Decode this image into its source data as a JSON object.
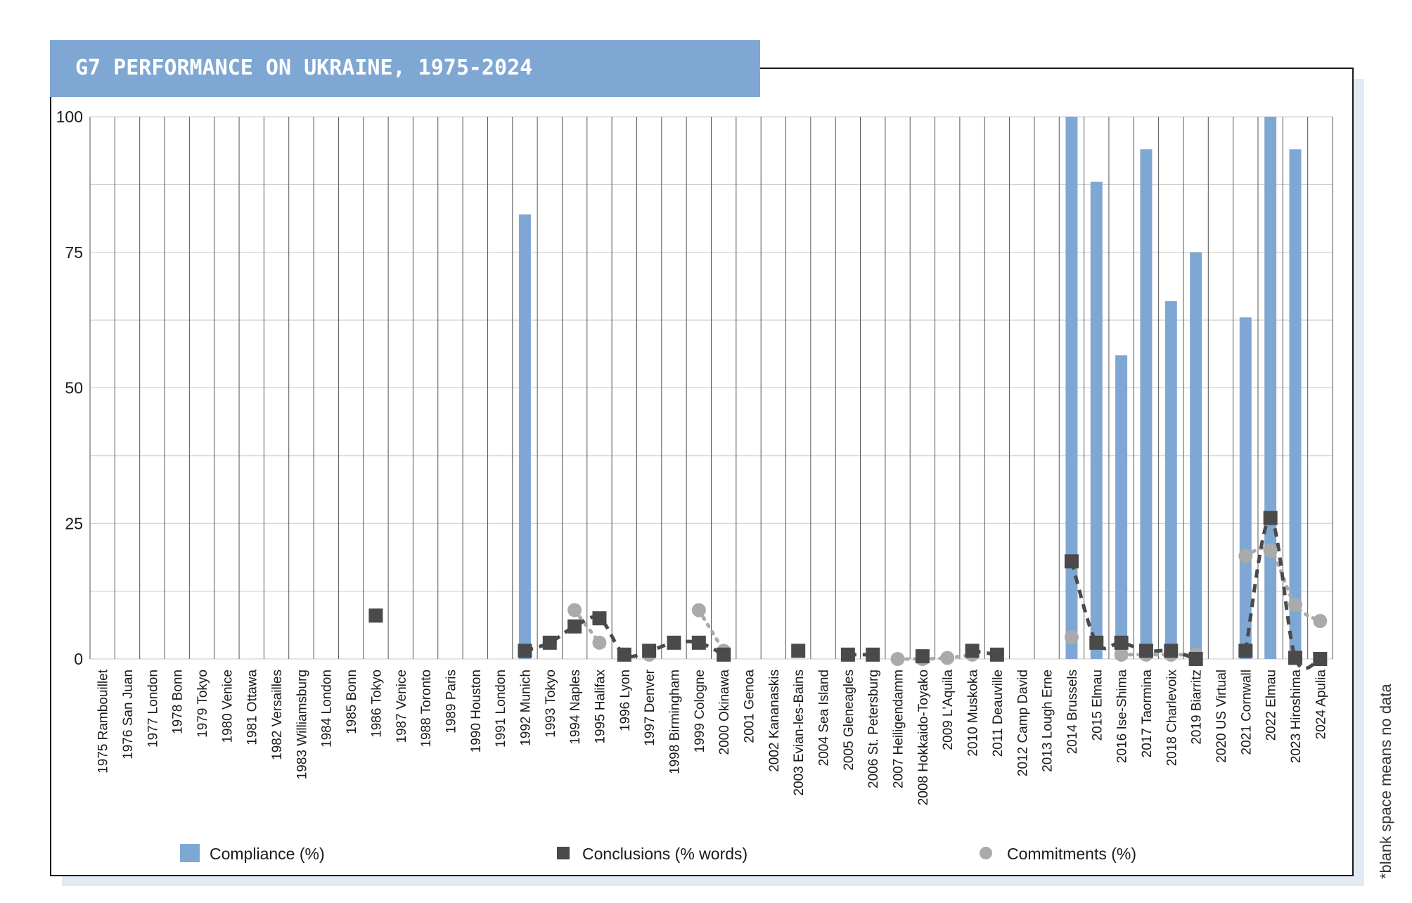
{
  "title": "G7 PERFORMANCE ON UKRAINE, 1975-2024",
  "side_note": "*blank space means no data",
  "colors": {
    "compliance": "#7fa7d3",
    "conclusions": "#4a4a4a",
    "commitments": "#aaaaaa",
    "header_bg": "#7fa7d3",
    "shadow": "#e1eaf3"
  },
  "legend": [
    {
      "key": "compliance",
      "label": "Compliance (%)",
      "marker": "square-blue"
    },
    {
      "key": "conclusions",
      "label": "Conclusions (% words)",
      "marker": "square-dark"
    },
    {
      "key": "commitments",
      "label": "Commitments (%)",
      "marker": "circle-grey"
    }
  ],
  "chart_data": {
    "type": "bar",
    "title": "G7 PERFORMANCE ON UKRAINE, 1975-2024",
    "ylim": [
      0,
      100
    ],
    "yticks": [
      0,
      25,
      50,
      75,
      100
    ],
    "grid": true,
    "legend_position": "bottom",
    "categories": [
      "1975 Rambouillet",
      "1976 San Juan",
      "1977 London",
      "1978 Bonn",
      "1979 Tokyo",
      "1980 Venice",
      "1981 Ottawa",
      "1982 Versailles",
      "1983 Williamsburg",
      "1984 London",
      "1985 Bonn",
      "1986 Tokyo",
      "1987 Venice",
      "1988 Toronto",
      "1989 Paris",
      "1990 Houston",
      "1991 London",
      "1992 Munich",
      "1993 Tokyo",
      "1994 Naples",
      "1995 Halifax",
      "1996 Lyon",
      "1997 Denver",
      "1998 Birmingham",
      "1999 Cologne",
      "2000 Okinawa",
      "2001 Genoa",
      "2002 Kananaskis",
      "2003 Evian-les-Bains",
      "2004 Sea Island",
      "2005 Gleneagles",
      "2006 St. Petersburg",
      "2007 Heiligendamm",
      "2008 Hokkaido-Toyako",
      "2009 L'Aquila",
      "2010 Muskoka",
      "2011 Deauville",
      "2012 Camp David",
      "2013 Lough Erne",
      "2014 Brussels",
      "2015 Elmau",
      "2016 Ise-Shima",
      "2017 Taormina",
      "2018 Charlevoix",
      "2019 Biarritz",
      "2020 US Virtual",
      "2021 Cornwall",
      "2022 Elmau",
      "2023 Hiroshima",
      "2024 Apulia"
    ],
    "series": [
      {
        "name": "Compliance (%)",
        "kind": "bar",
        "values": [
          null,
          null,
          null,
          null,
          null,
          null,
          null,
          null,
          null,
          null,
          null,
          null,
          null,
          null,
          null,
          null,
          null,
          82,
          null,
          null,
          null,
          null,
          null,
          null,
          null,
          null,
          null,
          null,
          null,
          null,
          null,
          null,
          null,
          null,
          null,
          null,
          null,
          null,
          null,
          100,
          88,
          56,
          94,
          66,
          75,
          null,
          63,
          100,
          94,
          null
        ]
      },
      {
        "name": "Conclusions (% words)",
        "kind": "square",
        "values": [
          null,
          null,
          null,
          null,
          null,
          null,
          null,
          null,
          null,
          null,
          null,
          8,
          null,
          null,
          null,
          null,
          null,
          1.5,
          3,
          6,
          7.5,
          0.8,
          1.5,
          3,
          3,
          0.8,
          null,
          null,
          1.5,
          null,
          0.8,
          0.8,
          null,
          0.5,
          null,
          1.5,
          0.8,
          null,
          null,
          18,
          3,
          3,
          1.5,
          1.5,
          0,
          null,
          1.5,
          26,
          0.2,
          0
        ]
      },
      {
        "name": "Commitments (%)",
        "kind": "circle",
        "values": [
          null,
          null,
          null,
          null,
          null,
          null,
          null,
          null,
          null,
          null,
          null,
          null,
          null,
          null,
          null,
          null,
          null,
          null,
          null,
          9,
          3,
          null,
          0.8,
          null,
          9,
          1.5,
          null,
          null,
          null,
          null,
          null,
          null,
          0,
          0,
          0.2,
          0.8,
          null,
          null,
          null,
          4,
          null,
          0.8,
          0.8,
          0.8,
          0.8,
          null,
          19,
          20,
          10,
          7
        ]
      }
    ]
  }
}
